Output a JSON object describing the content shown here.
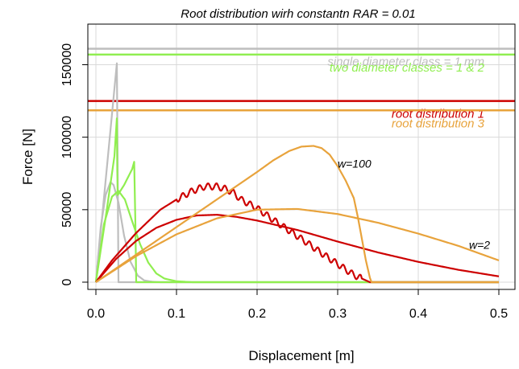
{
  "chart_data": {
    "type": "line",
    "title": "Root distribution wirh constantn RAR = 0.01",
    "xlabel": "Displacement [m]",
    "ylabel": "Force [N]",
    "xlim": [
      -0.01,
      0.52
    ],
    "ylim": [
      -5000,
      178000
    ],
    "xticks": [
      0.0,
      0.1,
      0.2,
      0.3,
      0.4,
      0.5
    ],
    "xtick_labels": [
      "0.0",
      "0.1",
      "0.2",
      "0.3",
      "0.4",
      "0.5"
    ],
    "yticks": [
      0,
      50000,
      100000,
      150000
    ],
    "ytick_labels": [
      "0",
      "50000",
      "100000",
      "150000"
    ],
    "grid": true,
    "colors": {
      "single": "#bebebe",
      "two": "#90ee50",
      "dist1": "#cd0000",
      "dist3": "#e8a33c",
      "grid": "#d9d9d9"
    },
    "reference_lines": [
      {
        "label": "single diameter class = 1 mm",
        "y": 161000,
        "color": "#bebebe"
      },
      {
        "label": "two diameter classes = 1 & 2",
        "y": 157000,
        "color": "#90ee50"
      },
      {
        "label": "root distribution 1",
        "y": 125000,
        "color": "#cd0000"
      },
      {
        "label": "root distribution 3",
        "y": 118500,
        "color": "#e8a33c"
      }
    ],
    "annotations": [
      {
        "text": "w=100",
        "x": 0.3,
        "y": 79000
      },
      {
        "text": "w=2",
        "x": 0.463,
        "y": 23000
      }
    ],
    "series": [
      {
        "group": "single",
        "color": "#bebebe",
        "x": [
          0,
          0.026,
          0.027,
          0.028,
          0.5
        ],
        "y": [
          0,
          151000,
          80000,
          0,
          0
        ]
      },
      {
        "group": "single",
        "color": "#bebebe",
        "x": [
          0,
          0.006,
          0.012,
          0.018,
          0.022,
          0.028,
          0.035,
          0.043,
          0.052,
          0.06,
          0.07,
          0.08,
          0.5
        ],
        "y": [
          0,
          38000,
          60000,
          69000,
          67000,
          55000,
          32000,
          14000,
          4500,
          1200,
          300,
          0,
          0
        ]
      },
      {
        "group": "two",
        "color": "#90ee50",
        "x": [
          0,
          0.013,
          0.023,
          0.026,
          0.0265,
          0.027,
          0.035,
          0.045,
          0.0475,
          0.049,
          0.05,
          0.5
        ],
        "y": [
          0,
          48000,
          87000,
          113000,
          78000,
          60000,
          67000,
          78000,
          83000,
          40000,
          0,
          0
        ]
      },
      {
        "group": "two",
        "color": "#90ee50",
        "x": [
          0,
          0.01,
          0.02,
          0.028,
          0.036,
          0.045,
          0.055,
          0.065,
          0.075,
          0.085,
          0.1,
          0.12,
          0.5
        ],
        "y": [
          0,
          40000,
          59000,
          63000,
          57000,
          42000,
          26000,
          13500,
          6000,
          2500,
          600,
          0,
          0
        ]
      },
      {
        "group": "dist1",
        "color": "#cd0000",
        "x": [
          0,
          0.02,
          0.05,
          0.08,
          0.1,
          0.12,
          0.135,
          0.15,
          0.16,
          0.17,
          0.18,
          0.2,
          0.22,
          0.24,
          0.26,
          0.28,
          0.3,
          0.32,
          0.33,
          0.34,
          0.5
        ],
        "y": [
          0,
          15000,
          34000,
          50000,
          57000,
          63000,
          66000,
          66000,
          64500,
          62000,
          57000,
          51000,
          43000,
          35500,
          28000,
          20000,
          12500,
          5000,
          2500,
          0,
          0
        ]
      },
      {
        "group": "dist1",
        "color": "#cd0000",
        "x": [
          0,
          0.025,
          0.05,
          0.075,
          0.1,
          0.125,
          0.15,
          0.175,
          0.2,
          0.25,
          0.3,
          0.35,
          0.4,
          0.45,
          0.5
        ],
        "y": [
          0,
          16000,
          28500,
          37500,
          43000,
          46000,
          46500,
          45000,
          42500,
          36000,
          28000,
          20500,
          14000,
          8500,
          4000
        ]
      },
      {
        "group": "dist3",
        "color": "#e8a33c",
        "x": [
          0,
          0.05,
          0.1,
          0.15,
          0.2,
          0.22,
          0.24,
          0.255,
          0.27,
          0.28,
          0.29,
          0.3,
          0.31,
          0.32,
          0.325,
          0.33,
          0.335,
          0.34,
          0.342,
          0.5
        ],
        "y": [
          0,
          19000,
          38000,
          57000,
          76000,
          84000,
          90500,
          93500,
          94000,
          92500,
          88000,
          80000,
          70000,
          58000,
          45000,
          30000,
          15000,
          3000,
          0,
          0
        ]
      },
      {
        "group": "dist3",
        "color": "#e8a33c",
        "x": [
          0,
          0.05,
          0.1,
          0.15,
          0.2,
          0.25,
          0.3,
          0.35,
          0.4,
          0.45,
          0.5
        ],
        "y": [
          0,
          18000,
          33000,
          44000,
          50000,
          50500,
          47000,
          41000,
          33500,
          25000,
          15000
        ]
      }
    ]
  }
}
